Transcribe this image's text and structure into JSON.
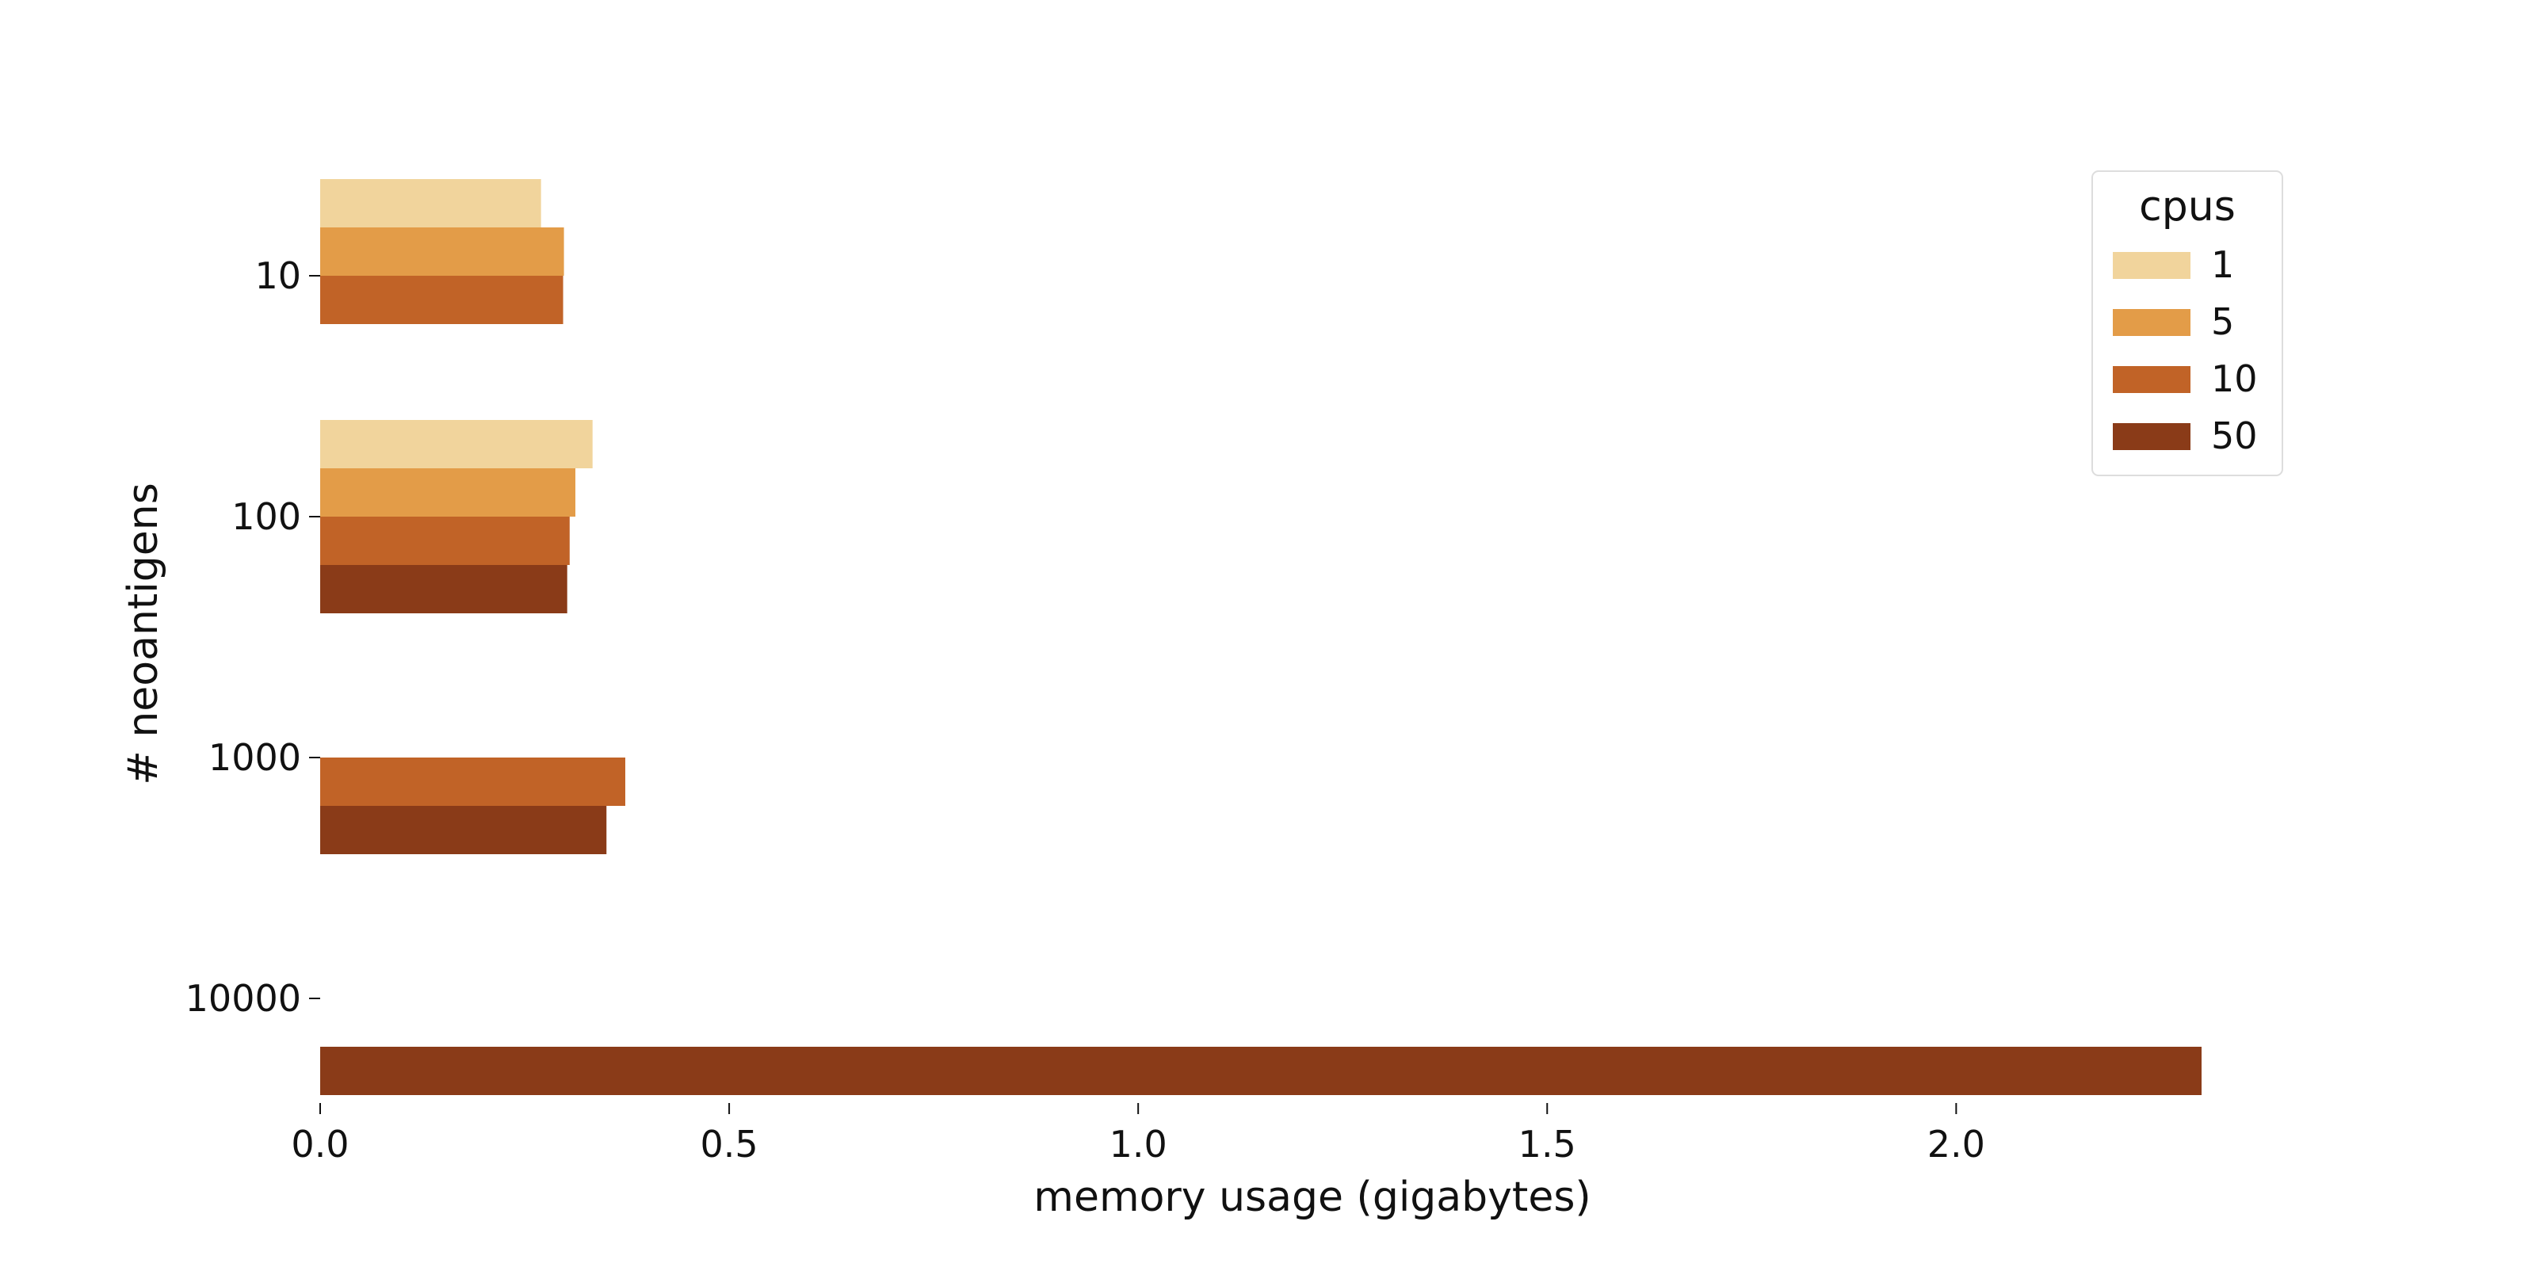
{
  "chart_data": {
    "type": "bar",
    "orientation": "horizontal",
    "title": "",
    "xlabel": "memory usage (gigabytes)",
    "ylabel": "# neoantigens",
    "xlim": [
      0,
      2.3
    ],
    "xticks": [
      "0.0",
      "0.5",
      "1.0",
      "1.5",
      "2.0"
    ],
    "xtick_values": [
      0.0,
      0.5,
      1.0,
      1.5,
      2.0
    ],
    "categories": [
      "10",
      "100",
      "1000",
      "10000"
    ],
    "legend": {
      "title": "cpus",
      "placement": "top-right"
    },
    "grid": false,
    "series": [
      {
        "name": "1",
        "color": "#f1d49c",
        "values": [
          0.27,
          0.333,
          null,
          null
        ]
      },
      {
        "name": "5",
        "color": "#e39c48",
        "values": [
          0.298,
          0.312,
          null,
          null
        ]
      },
      {
        "name": "10",
        "color": "#c16327",
        "values": [
          0.297,
          0.305,
          0.373,
          null
        ]
      },
      {
        "name": "50",
        "color": "#8a3b18",
        "values": [
          null,
          0.302,
          0.35,
          2.3
        ]
      }
    ]
  }
}
